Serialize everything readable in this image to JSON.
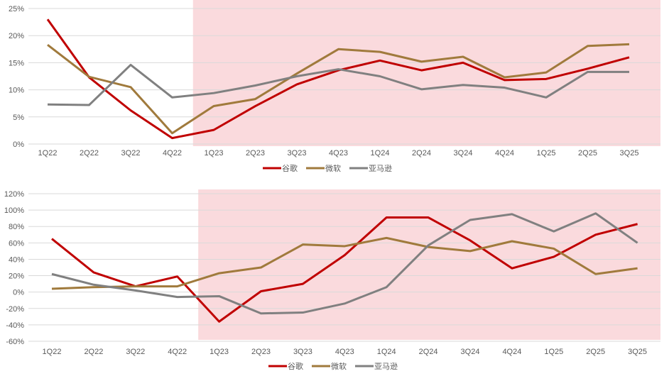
{
  "colors": {
    "google": "#C00000",
    "microsoft": "#A07A3C",
    "amazon": "#808080",
    "highlight": "#FADADD",
    "grid": "#D9D9D9"
  },
  "chart_data": [
    {
      "type": "line",
      "categories": [
        "1Q22",
        "2Q22",
        "3Q22",
        "4Q22",
        "1Q23",
        "2Q23",
        "3Q23",
        "4Q23",
        "1Q24",
        "2Q24",
        "3Q24",
        "4Q24",
        "1Q25",
        "2Q25",
        "3Q25"
      ],
      "ylim": [
        0,
        25
      ],
      "yticks": [
        0,
        5,
        10,
        15,
        20,
        25
      ],
      "ytick_labels": [
        "0%",
        "5%",
        "10%",
        "15%",
        "20%",
        "25%"
      ],
      "grid": true,
      "legend": "bottom",
      "highlight_from_category": "1Q23",
      "series": [
        {
          "name": "谷歌",
          "color_key": "google",
          "values": [
            23.0,
            12.3,
            6.2,
            1.1,
            2.6,
            7.0,
            11.0,
            13.6,
            15.4,
            13.6,
            15.0,
            11.8,
            12.0,
            13.9,
            16.0
          ]
        },
        {
          "name": "微软",
          "color_key": "microsoft",
          "values": [
            18.3,
            12.4,
            10.5,
            2.0,
            7.0,
            8.3,
            13.0,
            17.5,
            17.0,
            15.2,
            16.1,
            12.3,
            13.2,
            18.1,
            18.4
          ]
        },
        {
          "name": "亚马逊",
          "color_key": "amazon",
          "values": [
            7.3,
            7.2,
            14.6,
            8.6,
            9.4,
            10.8,
            12.5,
            13.8,
            12.5,
            10.1,
            10.9,
            10.4,
            8.6,
            13.3,
            13.3
          ]
        }
      ]
    },
    {
      "type": "line",
      "categories": [
        "1Q22",
        "2Q22",
        "3Q22",
        "4Q22",
        "1Q23",
        "2Q23",
        "3Q23",
        "4Q23",
        "1Q24",
        "2Q24",
        "3Q24",
        "4Q24",
        "1Q25",
        "2Q25",
        "3Q25"
      ],
      "ylim": [
        -60,
        120
      ],
      "yticks": [
        -60,
        -40,
        -20,
        0,
        20,
        40,
        60,
        80,
        100,
        120
      ],
      "ytick_labels": [
        "-60%",
        "-40%",
        "-20%",
        "0%",
        "20%",
        "40%",
        "60%",
        "80%",
        "100%",
        "120%"
      ],
      "grid": true,
      "legend": "bottom",
      "highlight_from_category": "1Q23",
      "series": [
        {
          "name": "谷歌",
          "color_key": "google",
          "values": [
            65,
            24,
            7,
            19,
            -36,
            1,
            10,
            45,
            91,
            91,
            63,
            29,
            43,
            70,
            83
          ]
        },
        {
          "name": "微软",
          "color_key": "microsoft",
          "values": [
            4,
            6,
            7,
            7,
            23,
            30,
            58,
            56,
            66,
            55,
            50,
            62,
            53,
            22,
            29
          ]
        },
        {
          "name": "亚马逊",
          "color_key": "amazon",
          "values": [
            22,
            9,
            2,
            -6,
            -5,
            -26,
            -25,
            -14,
            6,
            57,
            88,
            95,
            74,
            96,
            60
          ]
        }
      ]
    }
  ]
}
